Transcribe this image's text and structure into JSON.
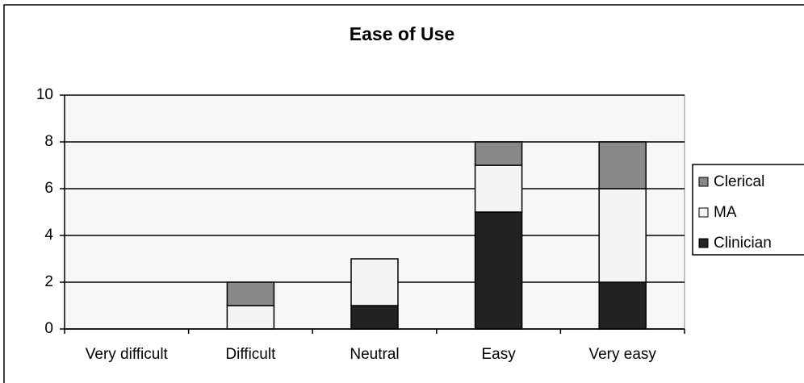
{
  "chart_data": {
    "type": "stacked_bar",
    "title": "Ease of Use",
    "categories": [
      "Very difficult",
      "Difficult",
      "Neutral",
      "Easy",
      "Very easy"
    ],
    "series": [
      {
        "name": "Clinician",
        "color": "#222222",
        "values": [
          0,
          0,
          1,
          5,
          2
        ]
      },
      {
        "name": "MA",
        "color": "#f4f4f4",
        "values": [
          0,
          1,
          2,
          2,
          4
        ]
      },
      {
        "name": "Clerical",
        "color": "#888888",
        "values": [
          0,
          1,
          0,
          1,
          2
        ]
      }
    ],
    "ylim": [
      0,
      10
    ],
    "yticks": [
      0,
      2,
      4,
      6,
      8,
      10
    ],
    "grid": true,
    "legend": "right"
  }
}
